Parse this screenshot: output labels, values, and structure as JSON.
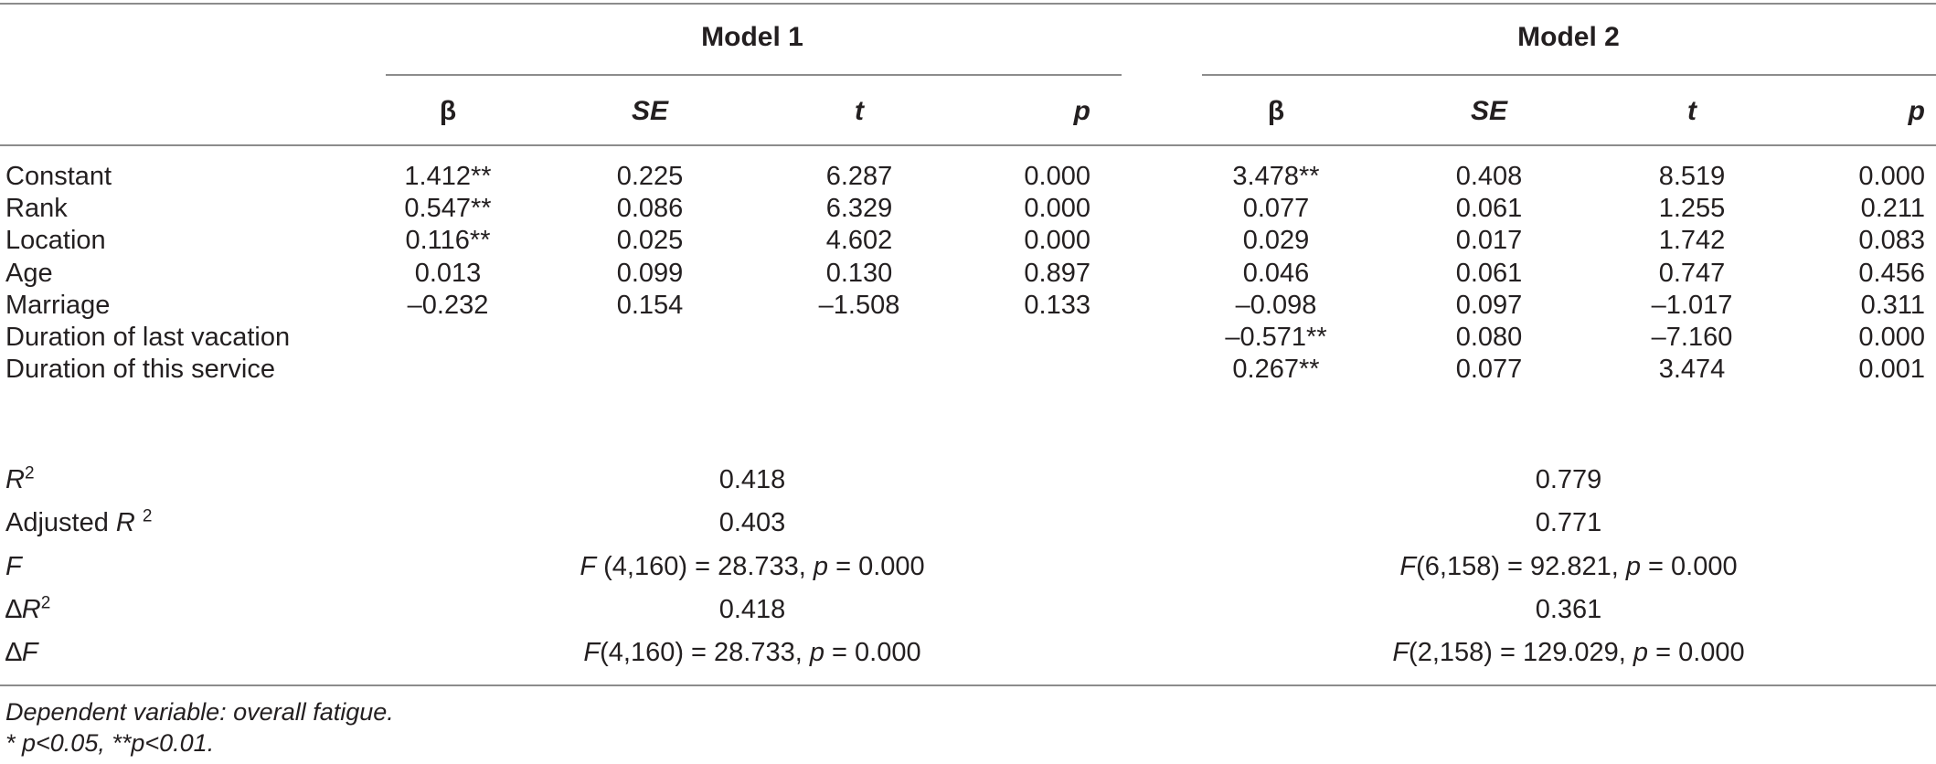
{
  "table": {
    "model_headers": [
      "Model 1",
      "Model 2"
    ],
    "column_headers": [
      "β",
      "SE",
      "t",
      "p",
      "β",
      "SE",
      "t",
      "p"
    ],
    "rows": [
      {
        "label": "Constant",
        "values": [
          "1.412**",
          "0.225",
          "6.287",
          "0.000",
          "3.478**",
          "0.408",
          "8.519",
          "0.000"
        ]
      },
      {
        "label": "Rank",
        "values": [
          "0.547**",
          "0.086",
          "6.329",
          "0.000",
          "0.077",
          "0.061",
          "1.255",
          "0.211"
        ]
      },
      {
        "label": "Location",
        "values": [
          "0.116**",
          "0.025",
          "4.602",
          "0.000",
          "0.029",
          "0.017",
          "1.742",
          "0.083"
        ]
      },
      {
        "label": "Age",
        "values": [
          "0.013",
          "0.099",
          "0.130",
          "0.897",
          "0.046",
          "0.061",
          "0.747",
          "0.456"
        ]
      },
      {
        "label": "Marriage",
        "values": [
          "–0.232",
          "0.154",
          "–1.508",
          "0.133",
          "–0.098",
          "0.097",
          "–1.017",
          "0.311"
        ]
      },
      {
        "label": "Duration of last vacation",
        "values": [
          "",
          "",
          "",
          "",
          "–0.571**",
          "0.080",
          "–7.160",
          "0.000"
        ]
      },
      {
        "label": "Duration of this service",
        "values": [
          "",
          "",
          "",
          "",
          "0.267**",
          "0.077",
          "3.474",
          "0.001"
        ]
      }
    ],
    "summary": {
      "r2": {
        "label_base": "R",
        "label_sup": "2",
        "m1": "0.418",
        "m2": "0.779"
      },
      "adj_r2": {
        "label_prefix": "Adjusted ",
        "label_base": "R ",
        "label_sup": "2",
        "m1": "0.403",
        "m2": "0.771"
      },
      "f": {
        "label": "F",
        "m1": {
          "f": "F",
          "args": " (4,160) = 28.733, ",
          "p": "p",
          "rest": " = 0.000"
        },
        "m2": {
          "f": "F",
          "args": "(6,158) = 92.821, ",
          "p": "p",
          "rest": " = 0.000"
        }
      },
      "delta_r2": {
        "label_delta": "∆",
        "label_base": "R",
        "label_sup": "2",
        "m1": "0.418",
        "m2": "0.361"
      },
      "delta_f": {
        "label_delta": "∆",
        "label_base": "F",
        "m1": {
          "f": "F",
          "args": "(4,160) = 28.733, ",
          "p": "p",
          "rest": " = 0.000"
        },
        "m2": {
          "f": "F",
          "args": "(2,158) = 129.029, ",
          "p": "p",
          "rest": " = 0.000"
        }
      }
    },
    "footnotes": {
      "line1": "Dependent variable: overall fatigue.",
      "line2": "* p<0.05, **p<0.01."
    }
  }
}
